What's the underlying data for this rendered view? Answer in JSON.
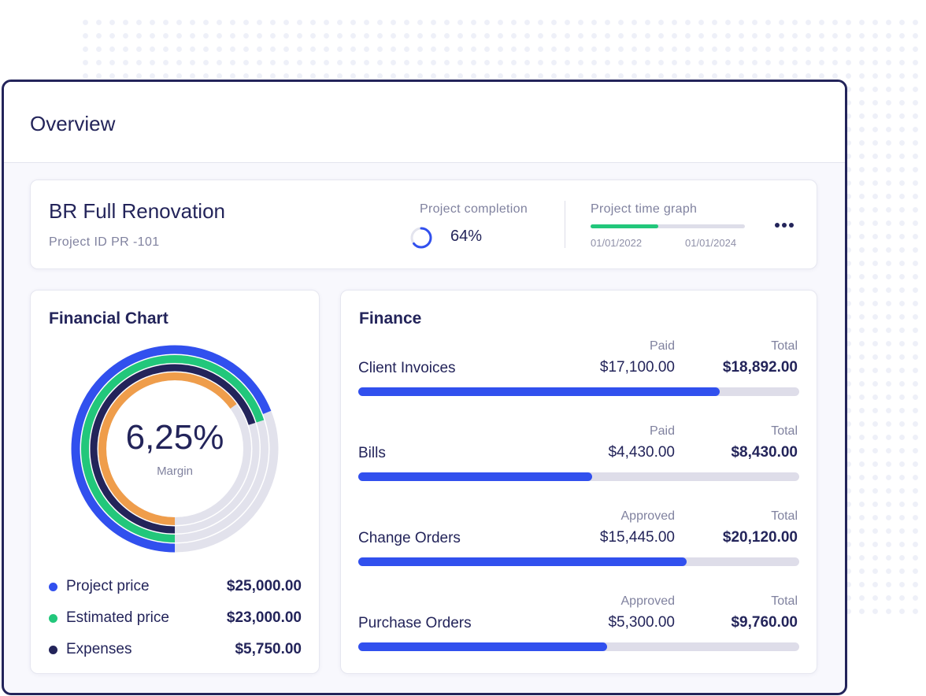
{
  "window": {
    "title": "Overview"
  },
  "project": {
    "name": "BR Full Renovation",
    "id_text": "Project ID PR -101",
    "completion_label": "Project completion",
    "completion_value": "64%",
    "completion_fraction": 0.64,
    "timegraph_label": "Project time graph",
    "timegraph_start": "01/01/2022",
    "timegraph_end": "01/01/2024",
    "timegraph_progress": 0.44
  },
  "financial_chart": {
    "title": "Financial Chart",
    "margin_value": "6,25%",
    "margin_label": "Margin",
    "rings": [
      {
        "name": "Project price",
        "fraction": 0.69,
        "color": "#3150ee"
      },
      {
        "name": "Estimated price",
        "fraction": 0.7,
        "color": "#22c77b"
      },
      {
        "name": "Expenses",
        "fraction": 0.7,
        "color": "#23245a"
      },
      {
        "name": "Margin",
        "fraction": 0.65,
        "color": "#ef9d4b"
      }
    ],
    "legend": [
      {
        "label": "Project price",
        "value": "$25,000.00",
        "color": "#3150ee"
      },
      {
        "label": "Estimated price",
        "value": "$23,000.00",
        "color": "#22c77b"
      },
      {
        "label": "Expenses",
        "value": "$5,750.00",
        "color": "#23245a"
      }
    ]
  },
  "finance": {
    "title": "Finance",
    "rows": [
      {
        "name": "Client Invoices",
        "paid_label": "Paid",
        "paid": "$17,100.00",
        "total_label": "Total",
        "total": "$18,892.00",
        "progress": 0.82
      },
      {
        "name": "Bills",
        "paid_label": "Paid",
        "paid": "$4,430.00",
        "total_label": "Total",
        "total": "$8,430.00",
        "progress": 0.53
      },
      {
        "name": "Change Orders",
        "paid_label": "Approved",
        "paid": "$15,445.00",
        "total_label": "Total",
        "total": "$20,120.00",
        "progress": 0.745
      },
      {
        "name": "Purchase Orders",
        "paid_label": "Approved",
        "paid": "$5,300.00",
        "total_label": "Total",
        "total": "$9,760.00",
        "progress": 0.565
      }
    ]
  }
}
